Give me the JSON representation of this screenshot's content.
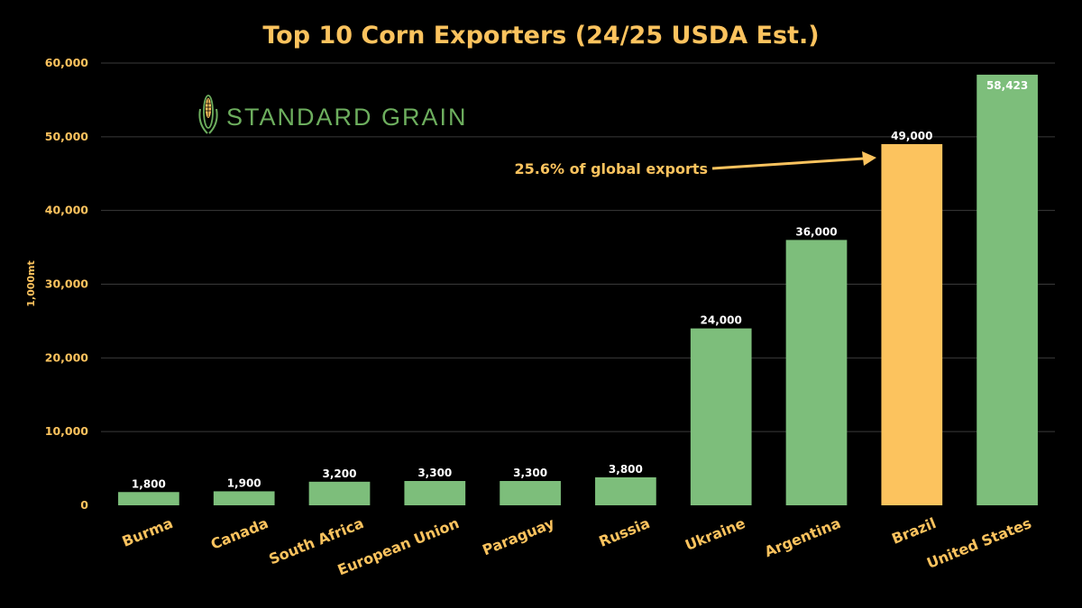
{
  "logo": {
    "text": "STANDARD GRAIN"
  },
  "chart_data": {
    "type": "bar",
    "title": "Top 10 Corn Exporters (24/25 USDA Est.)",
    "ylabel": "1,000mt",
    "xlabel": "",
    "ylim": [
      0,
      60000
    ],
    "yticks": [
      {
        "value": 0,
        "label": "0"
      },
      {
        "value": 10000,
        "label": "10,000"
      },
      {
        "value": 20000,
        "label": "20,000"
      },
      {
        "value": 30000,
        "label": "30,000"
      },
      {
        "value": 40000,
        "label": "40,000"
      },
      {
        "value": 50000,
        "label": "50,000"
      },
      {
        "value": 60000,
        "label": "60,000"
      }
    ],
    "grid": true,
    "categories": [
      "Burma",
      "Canada",
      "South Africa",
      "European Union",
      "Paraguay",
      "Russia",
      "Ukraine",
      "Argentina",
      "Brazil",
      "United States"
    ],
    "values": [
      1800,
      1900,
      3200,
      3300,
      3300,
      3800,
      24000,
      36000,
      49000,
      58423
    ],
    "value_labels": [
      "1,800",
      "1,900",
      "3,200",
      "3,300",
      "3,300",
      "3,800",
      "24,000",
      "36,000",
      "49,000",
      "58,423"
    ],
    "bar_color": "#7DBE7B",
    "highlight_color": "#FCC35E",
    "highlight_index": 8,
    "annotation": {
      "text": "25.6% of global exports",
      "target_category": "Brazil"
    }
  }
}
